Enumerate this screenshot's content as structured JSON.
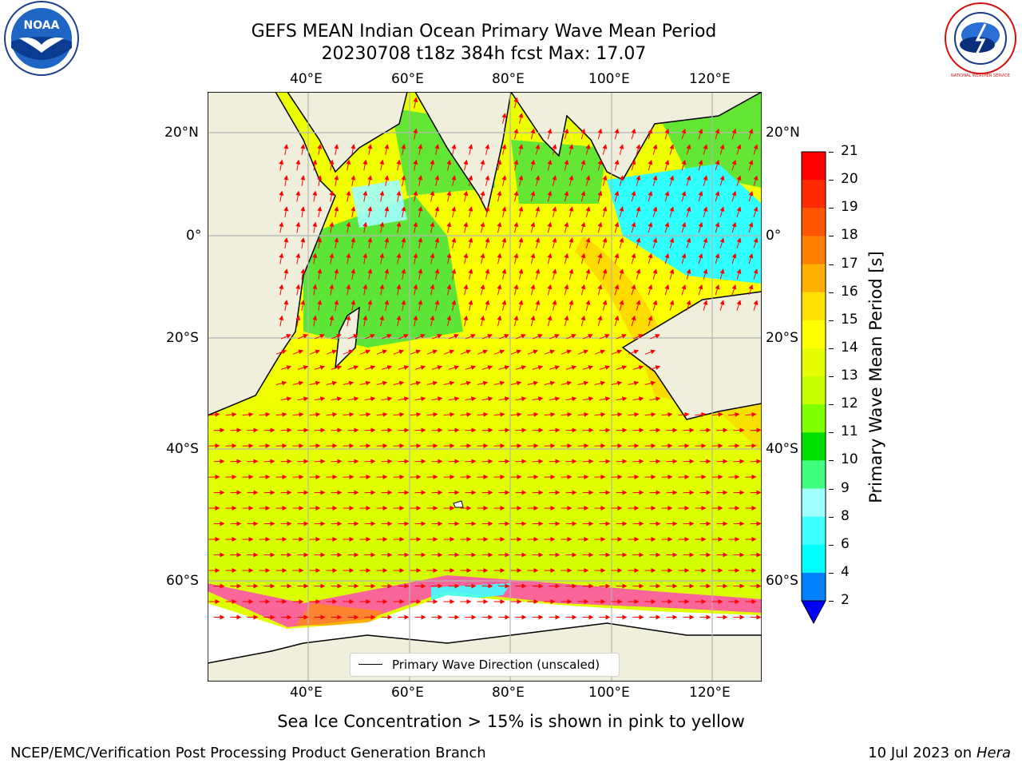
{
  "header": {
    "title_line1": "GEFS MEAN Indian Ocean Primary Wave Mean Period",
    "title_line2": "20230708 t18z 384h fcst   Max: 17.07"
  },
  "map": {
    "lon_labels": [
      "40°E",
      "60°E",
      "80°E",
      "100°E",
      "120°E"
    ],
    "lat_labels": [
      "20°N",
      "0°",
      "20°S",
      "40°S",
      "60°S"
    ],
    "legend_label": "Primary Wave Direction (unscaled)"
  },
  "colorbar": {
    "label": "Primary Wave Mean Period [s]",
    "ticks": [
      "21",
      "20",
      "19",
      "18",
      "17",
      "16",
      "15",
      "14",
      "13",
      "12",
      "11",
      "10",
      "9",
      "8",
      "6",
      "4",
      "2"
    ],
    "colors": [
      "#ff0000",
      "#ff2a00",
      "#ff5500",
      "#ff8000",
      "#ffb000",
      "#ffe000",
      "#ffff00",
      "#e6ff00",
      "#c8ff00",
      "#80ff00",
      "#00e000",
      "#40ff80",
      "#a0ffff",
      "#40ffff",
      "#00ffff",
      "#0080ff"
    ],
    "under_color": "#0000ff"
  },
  "note": "Sea Ice Concentration > 15% is shown in pink to yellow",
  "footer": {
    "left": "NCEP/EMC/Verification Post Processing Product Generation Branch",
    "right_prefix": "10 Jul 2023 on ",
    "right_host": "Hera"
  },
  "logos": {
    "noaa_text": "NOAA",
    "nws_text": "NATIONAL WEATHER SERVICE"
  }
}
